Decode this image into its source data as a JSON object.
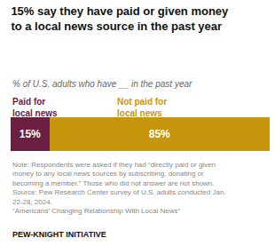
{
  "chart_data": {
    "type": "bar",
    "orientation": "horizontal",
    "stacked": true,
    "title": "15% say they have paid or given money\nto a local news source in the past year",
    "subtitle": "% of U.S. adults who have __ in the past year",
    "categories": [
      null
    ],
    "series": [
      {
        "name": "Paid for\nlocal news",
        "color": "#6b2042",
        "values": [
          15
        ],
        "value_labels": [
          "15%"
        ]
      },
      {
        "name": "Not paid for\nlocal news",
        "color": "#c8960c",
        "values": [
          85
        ],
        "value_labels": [
          "85%"
        ]
      }
    ],
    "xlim": [
      0,
      100
    ],
    "data_labels": true,
    "tick_labels": false,
    "grid": false,
    "annotations": [
      "Note: Respondents were asked if they had “directly paid or given\nmoney to any local news sources by subscribing, donating or\nbecoming a member.” Those who did not answer are not shown.\nSource: Pew Research Center survey of U.S. adults conducted Jan.\n22-28, 2024.\n“Americans’ Changing Relationship With Local News”",
      "PEW-KNIGHT INITIATIVE"
    ]
  }
}
